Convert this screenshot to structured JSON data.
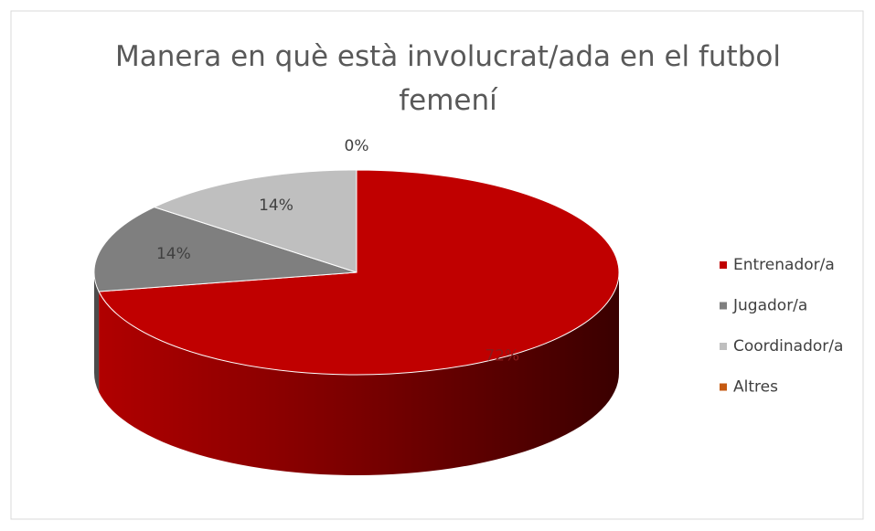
{
  "chart_data": {
    "type": "pie3d",
    "title": "Manera en què està involucrat/ada en el futbol femení",
    "categories": [
      "Entrenador/a",
      "Jugador/a",
      "Coordinador/a",
      "Altres"
    ],
    "values": [
      72,
      14,
      14,
      0
    ],
    "value_labels": [
      "72%",
      "14%",
      "14%",
      "0%"
    ],
    "colors": [
      "#c00000",
      "#7f7f7f",
      "#bfbfbf",
      "#c55a11"
    ],
    "legend": "right"
  }
}
